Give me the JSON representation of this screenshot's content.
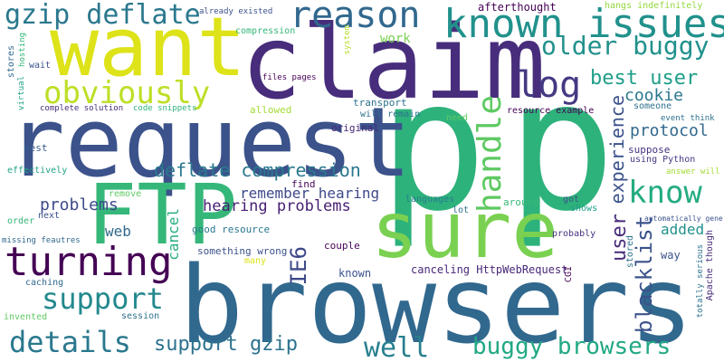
{
  "words": [
    {
      "id": "w_p1",
      "text": "p",
      "color": "#2eb27c"
    },
    {
      "id": "w_p2",
      "text": "p",
      "color": "#2eb27c"
    },
    {
      "id": "w_browsers",
      "text": "browsers",
      "color": "#31688e"
    },
    {
      "id": "w_request",
      "text": "request",
      "color": "#3b528b"
    },
    {
      "id": "w_claim",
      "text": "claim",
      "color": "#472d7b"
    },
    {
      "id": "w_want",
      "text": "want",
      "color": "#dde318"
    },
    {
      "id": "w_sure",
      "text": "sure",
      "color": "#7ad151"
    },
    {
      "id": "w_ftp",
      "text": "FTP",
      "color": "#35b779"
    },
    {
      "id": "w_known_issues",
      "text": "known issues",
      "color": "#21918c"
    },
    {
      "id": "w_reason",
      "text": "reason",
      "color": "#31688e"
    },
    {
      "id": "w_gzip_deflate",
      "text": "gzip deflate",
      "color": "#2a788e"
    },
    {
      "id": "w_obviously",
      "text": "obviously",
      "color": "#bddf26"
    },
    {
      "id": "w_older_buggy",
      "text": "older buggy",
      "color": "#21918c"
    },
    {
      "id": "w_log",
      "text": "log",
      "color": "#443983"
    },
    {
      "id": "w_best_user",
      "text": "best user",
      "color": "#1f9e89"
    },
    {
      "id": "w_handle",
      "text": "handle",
      "color": "#5ec962"
    },
    {
      "id": "w_know",
      "text": "know",
      "color": "#25ab82"
    },
    {
      "id": "w_experience",
      "text": "experience",
      "color": "#3b528b"
    },
    {
      "id": "w_cookie",
      "text": "cookie",
      "color": "#2a788e"
    },
    {
      "id": "w_protocol",
      "text": "protocol",
      "color": "#31688e"
    },
    {
      "id": "w_turning",
      "text": "turning",
      "color": "#440154"
    },
    {
      "id": "w_support",
      "text": "support",
      "color": "#23898e"
    },
    {
      "id": "w_details",
      "text": "details",
      "color": "#2a788e"
    },
    {
      "id": "w_support_gzip",
      "text": "support gzip",
      "color": "#2c728e"
    },
    {
      "id": "w_well",
      "text": "well",
      "color": "#277f8e"
    },
    {
      "id": "w_buggy_browsers",
      "text": "buggy browsers",
      "color": "#22a884"
    },
    {
      "id": "w_deflate_compression",
      "text": "deflate compression",
      "color": "#2a788e"
    },
    {
      "id": "w_ie6",
      "text": "IE6",
      "color": "#3e4989"
    },
    {
      "id": "w_remember_hearing",
      "text": "remember hearing",
      "color": "#3e4989"
    },
    {
      "id": "w_hearing_problems",
      "text": "hearing problems",
      "color": "#482173"
    },
    {
      "id": "w_problems",
      "text": "problems",
      "color": "#3e4a89"
    },
    {
      "id": "w_user",
      "text": "user",
      "color": "#472c7a"
    },
    {
      "id": "w_blacklist",
      "text": "blacklist",
      "color": "#3b528b"
    },
    {
      "id": "w_added",
      "text": "added",
      "color": "#21918c"
    },
    {
      "id": "w_web",
      "text": "web",
      "color": "#31688e"
    },
    {
      "id": "w_cancel",
      "text": "cancel",
      "color": "#29af7f"
    },
    {
      "id": "w_work",
      "text": "work",
      "color": "#7ad151"
    },
    {
      "id": "w_afterthought",
      "text": "afterthought",
      "color": "#440154"
    },
    {
      "id": "w_hangs",
      "text": "hangs indefinitely",
      "color": "#95d840"
    },
    {
      "id": "w_already",
      "text": "already existed",
      "color": "#3b528b"
    },
    {
      "id": "w_compression",
      "text": "compression",
      "color": "#35b779"
    },
    {
      "id": "w_stores",
      "text": "stores",
      "color": "#31688e"
    },
    {
      "id": "w_hosting",
      "text": "hosting",
      "color": "#35b779"
    },
    {
      "id": "w_wait",
      "text": "wait",
      "color": "#3b528b"
    },
    {
      "id": "w_virtual",
      "text": "virtual",
      "color": "#20a386"
    },
    {
      "id": "w_system",
      "text": "system",
      "color": "#b5de2b"
    },
    {
      "id": "w_files_pages",
      "text": "files pages",
      "color": "#440154"
    },
    {
      "id": "w_transport",
      "text": "transport",
      "color": "#2c728e"
    },
    {
      "id": "w_allowed",
      "text": "allowed",
      "color": "#a5db36"
    },
    {
      "id": "w_will_remain",
      "text": "will remain",
      "color": "#2c728e"
    },
    {
      "id": "w_need",
      "text": "need",
      "color": "#5ec962"
    },
    {
      "id": "w_original",
      "text": "original",
      "color": "#482878"
    },
    {
      "id": "w_complete",
      "text": "complete solution",
      "color": "#472c7a"
    },
    {
      "id": "w_code",
      "text": "code snippets",
      "color": "#2fb47c"
    },
    {
      "id": "w_resource_example",
      "text": "resource example",
      "color": "#440154"
    },
    {
      "id": "w_someone",
      "text": "someone",
      "color": "#2c728e"
    },
    {
      "id": "w_event",
      "text": "event think",
      "color": "#2c728e"
    },
    {
      "id": "w_suppose",
      "text": "suppose",
      "color": "#46327e"
    },
    {
      "id": "w_using_python",
      "text": "using Python",
      "color": "#443983"
    },
    {
      "id": "w_answer",
      "text": "answer will",
      "color": "#a5db36"
    },
    {
      "id": "w_best",
      "text": "best",
      "color": "#365d8d"
    },
    {
      "id": "w_effectively",
      "text": "effectively",
      "color": "#20a386"
    },
    {
      "id": "w_find",
      "text": "find",
      "color": "#46085c"
    },
    {
      "id": "w_remove",
      "text": "remove",
      "color": "#5ec962"
    },
    {
      "id": "w_order",
      "text": "order",
      "color": "#35b779"
    },
    {
      "id": "w_next",
      "text": "next",
      "color": "#3b528b"
    },
    {
      "id": "w_missing",
      "text": "missing feautres",
      "color": "#31688e"
    },
    {
      "id": "w_languages",
      "text": "languages",
      "color": "#287c8e"
    },
    {
      "id": "w_lot",
      "text": "lot",
      "color": "#2c728e"
    },
    {
      "id": "w_around",
      "text": "around",
      "color": "#38b977"
    },
    {
      "id": "w_got",
      "text": "got",
      "color": "#3b528b"
    },
    {
      "id": "w_shows",
      "text": "shows",
      "color": "#1fa088"
    },
    {
      "id": "w_auto",
      "text": "automatically generate",
      "color": "#3b528b"
    },
    {
      "id": "w_good_resource",
      "text": "good resource",
      "color": "#2a788e"
    },
    {
      "id": "w_something_wrong",
      "text": "something wrong",
      "color": "#3b528b"
    },
    {
      "id": "w_couple",
      "text": "couple",
      "color": "#440154"
    },
    {
      "id": "w_probably",
      "text": "probably",
      "color": "#46327e"
    },
    {
      "id": "w_stored",
      "text": "stored",
      "color": "#2c728e"
    },
    {
      "id": "w_way",
      "text": "way",
      "color": "#3b528b"
    },
    {
      "id": "w_totally",
      "text": "totally serious",
      "color": "#2c728e"
    },
    {
      "id": "w_apache",
      "text": "Apache though",
      "color": "#472c7a"
    },
    {
      "id": "w_caching",
      "text": "caching",
      "color": "#31688e"
    },
    {
      "id": "w_many",
      "text": "many",
      "color": "#dde318"
    },
    {
      "id": "w_known",
      "text": "known",
      "color": "#3b528b"
    },
    {
      "id": "w_canceling",
      "text": "canceling HttpWebRequest",
      "color": "#482878"
    },
    {
      "id": "w_cgi",
      "text": "CGI",
      "color": "#440154"
    },
    {
      "id": "w_invented",
      "text": "invented",
      "color": "#5ec962"
    },
    {
      "id": "w_session",
      "text": "session",
      "color": "#2c728e"
    }
  ]
}
